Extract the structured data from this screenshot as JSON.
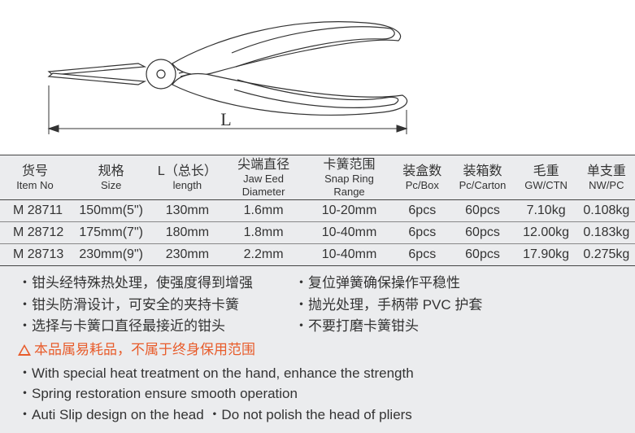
{
  "diagram": {
    "length_label": "L",
    "stroke": "#333333"
  },
  "table": {
    "headers": [
      {
        "cn": "货号",
        "en": "Item No"
      },
      {
        "cn": "规格",
        "en": "Size"
      },
      {
        "cn": "L（总长）",
        "en": "length"
      },
      {
        "cn": "尖端直径",
        "en": "Jaw Eed Diameter"
      },
      {
        "cn": "卡簧范围",
        "en": "Snap Ring Range"
      },
      {
        "cn": "装盒数",
        "en": "Pc/Box"
      },
      {
        "cn": "装箱数",
        "en": "Pc/Carton"
      },
      {
        "cn": "毛重",
        "en": "GW/CTN"
      },
      {
        "cn": "单支重",
        "en": "NW/PC"
      }
    ],
    "rows": [
      [
        "M 28711",
        "150mm(5\")",
        "130mm",
        "1.6mm",
        "10-20mm",
        "6pcs",
        "60pcs",
        "7.10kg",
        "0.108kg"
      ],
      [
        "M 28712",
        "175mm(7\")",
        "180mm",
        "1.8mm",
        "10-40mm",
        "6pcs",
        "60pcs",
        "12.00kg",
        "0.183kg"
      ],
      [
        "M 28713",
        "230mm(9\")",
        "230mm",
        "2.2mm",
        "10-40mm",
        "6pcs",
        "60pcs",
        "17.90kg",
        "0.275kg"
      ]
    ],
    "background_color": "#ebecee",
    "border_color": "#444444"
  },
  "features": {
    "cn": [
      [
        "・钳头经特殊热处理，使强度得到增强",
        "・复位弹簧确保操作平稳性"
      ],
      [
        "・钳头防滑设计，可安全的夹持卡簧",
        "・抛光处理，手柄带 PVC 护套"
      ],
      [
        "・选择与卡簧口直径最接近的钳头",
        "・不要打磨卡簧钳头"
      ]
    ],
    "warn": "本品属易耗品，不属于终身保用范围",
    "en": [
      "・With special heat treatment on the hand, enhance the strength",
      "・Spring restoration ensure smooth operation",
      "・Auti Slip design on the head ・Do not polish the head of pliers"
    ],
    "warn_color": "#e85c2b",
    "text_color": "#333333"
  }
}
